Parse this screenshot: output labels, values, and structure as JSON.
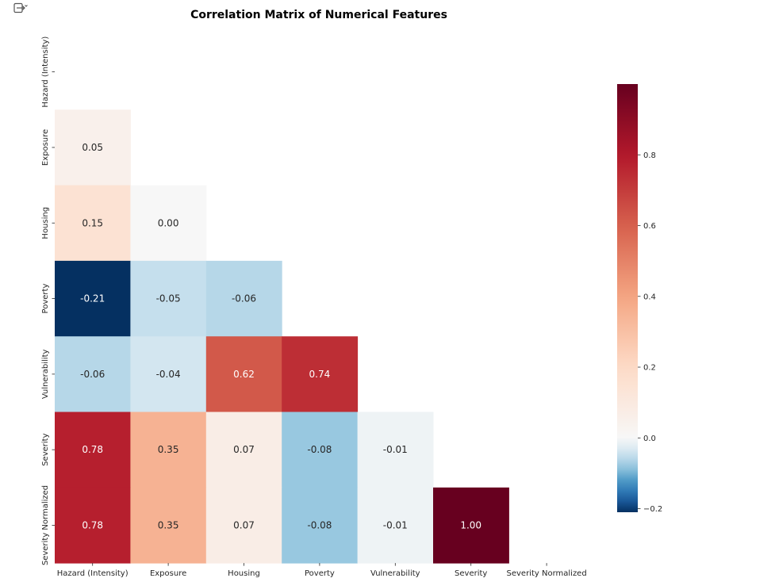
{
  "toolbar": {
    "icon": "export-output-icon"
  },
  "chart_data": {
    "type": "heatmap",
    "title": "Correlation Matrix of Numerical Features",
    "subtitle": "",
    "xlabel": "",
    "ylabel": "",
    "mask": "upper-triangle-including-diagonal",
    "colormap": "RdBu_r",
    "colorbar": {
      "vmin": -0.21,
      "vmax": 1.0,
      "ticks": [
        -0.2,
        0.0,
        0.2,
        0.4,
        0.6,
        0.8
      ],
      "tick_labels": [
        "−0.2",
        "0.0",
        "0.2",
        "0.4",
        "0.6",
        "0.8"
      ]
    },
    "variables": [
      "Hazard (Intensity)",
      "Exposure",
      "Housing",
      "Poverty",
      "Vulnerability",
      "Severity",
      "Severity Normalized"
    ],
    "matrix": [
      [
        null,
        null,
        null,
        null,
        null,
        null,
        null
      ],
      [
        0.05,
        null,
        null,
        null,
        null,
        null,
        null
      ],
      [
        0.15,
        0.0,
        null,
        null,
        null,
        null,
        null
      ],
      [
        -0.21,
        -0.05,
        -0.06,
        null,
        null,
        null,
        null
      ],
      [
        -0.06,
        -0.04,
        0.62,
        0.74,
        null,
        null,
        null
      ],
      [
        0.78,
        0.35,
        0.07,
        -0.08,
        -0.01,
        null,
        null
      ],
      [
        0.78,
        0.35,
        0.07,
        -0.08,
        -0.01,
        1.0,
        null
      ]
    ],
    "cell_labels": [
      [
        null,
        null,
        null,
        null,
        null,
        null,
        null
      ],
      [
        "0.05",
        null,
        null,
        null,
        null,
        null,
        null
      ],
      [
        "0.15",
        "0.00",
        null,
        null,
        null,
        null,
        null
      ],
      [
        "-0.21",
        "-0.05",
        "-0.06",
        null,
        null,
        null,
        null
      ],
      [
        "-0.06",
        "-0.04",
        "0.62",
        "0.74",
        null,
        null,
        null
      ],
      [
        "0.78",
        "0.35",
        "0.07",
        "-0.08",
        "-0.01",
        null,
        null
      ],
      [
        "0.78",
        "0.35",
        "0.07",
        "-0.08",
        "-0.01",
        "1.00",
        null
      ]
    ]
  }
}
